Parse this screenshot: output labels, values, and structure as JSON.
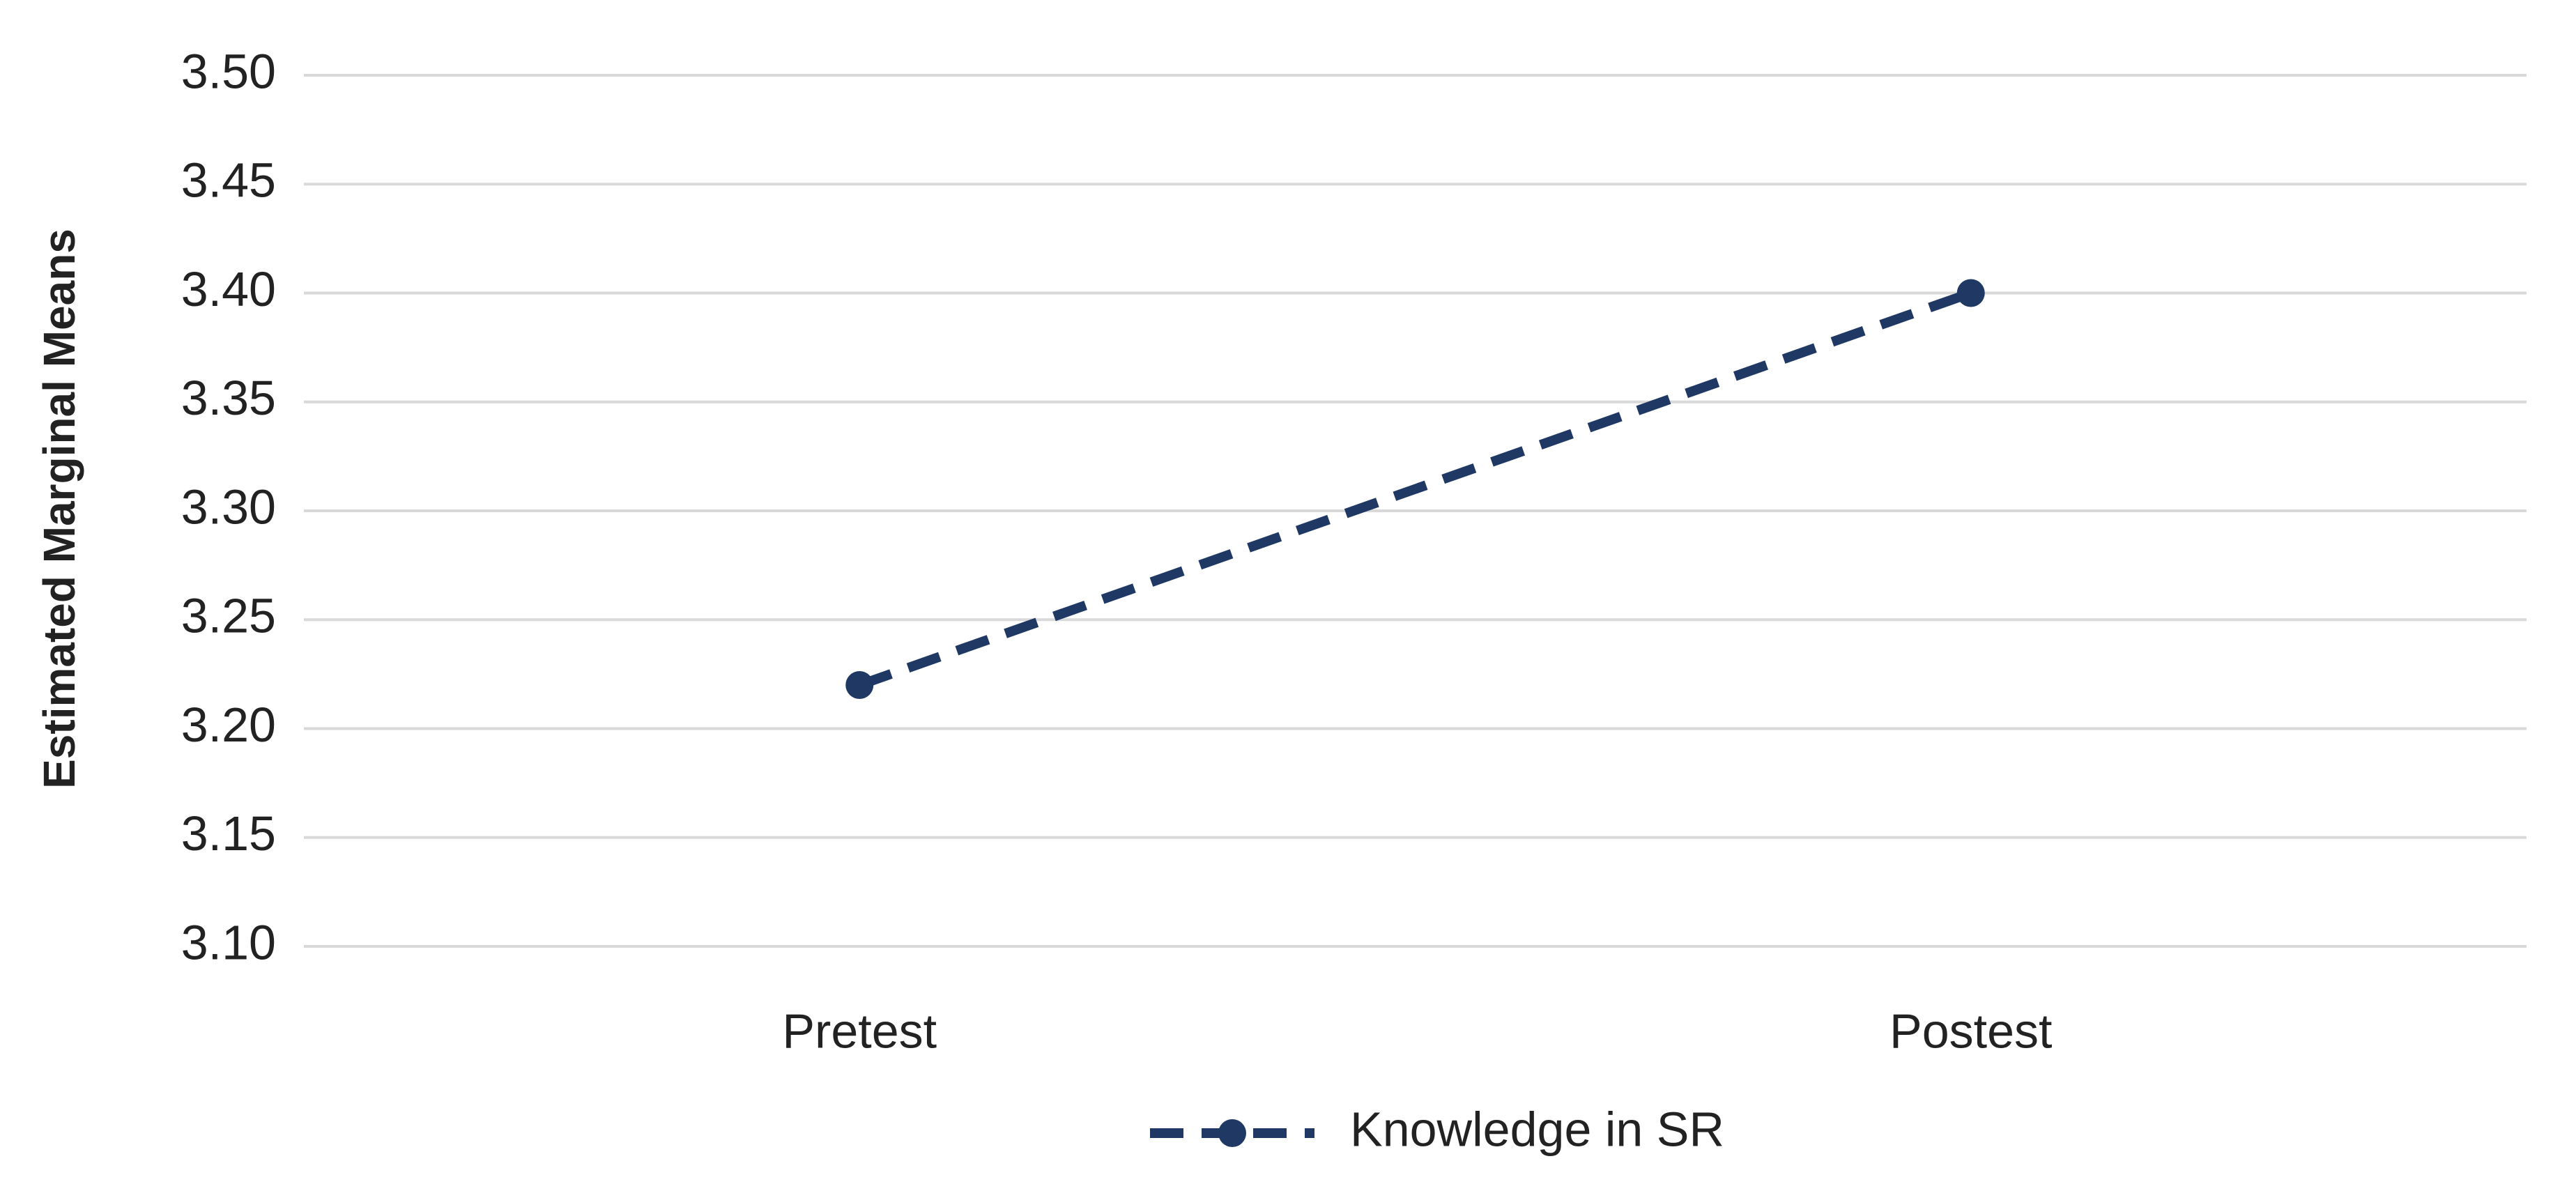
{
  "chart_data": {
    "type": "line",
    "y_label": "Estimated Marginal Means",
    "categories": [
      "Pretest",
      "Postest"
    ],
    "series": [
      {
        "name": "Knowledge in SR",
        "color": "#1f3864",
        "values": [
          3.22,
          3.4
        ]
      }
    ],
    "ylim": [
      3.1,
      3.5
    ],
    "yticks": [
      {
        "value": 3.1,
        "label": "3.10"
      },
      3.15,
      {
        "value": 3.2,
        "label": "3.20"
      },
      3.25,
      {
        "value": 3.3,
        "label": "3.30"
      },
      3.35,
      {
        "value": 3.4,
        "label": "3.40"
      },
      3.45,
      {
        "value": 3.5,
        "label": "3.50"
      }
    ],
    "grid": true,
    "legend": "bottom"
  }
}
